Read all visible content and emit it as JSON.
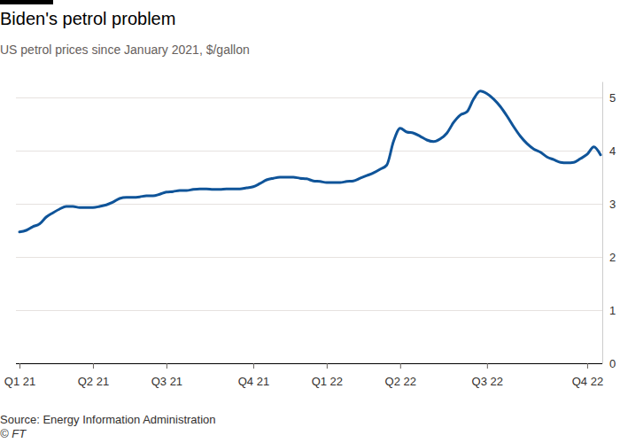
{
  "chart_data": {
    "type": "line",
    "title": "Biden's petrol problem",
    "subtitle": "US petrol prices since January 2021, $/gallon",
    "source": "Source: Energy Information Administration",
    "credit": "© FT",
    "categories": [
      "Q1 21",
      null,
      null,
      null,
      null,
      null,
      null,
      null,
      null,
      null,
      null,
      "Q2 21",
      null,
      null,
      null,
      null,
      null,
      null,
      null,
      null,
      null,
      null,
      "Q3 21",
      null,
      null,
      null,
      null,
      null,
      null,
      null,
      null,
      null,
      null,
      null,
      null,
      "Q4 21",
      null,
      null,
      null,
      null,
      null,
      null,
      null,
      null,
      null,
      null,
      "Q1 22",
      null,
      null,
      null,
      null,
      null,
      null,
      null,
      null,
      null,
      null,
      "Q2 22",
      null,
      null,
      null,
      null,
      null,
      null,
      null,
      null,
      null,
      null,
      null,
      null,
      "Q3 22",
      null,
      null,
      null,
      null,
      null,
      null,
      null,
      null,
      null,
      null,
      null,
      null,
      null,
      null,
      "Q4 22",
      null,
      null
    ],
    "values": [
      2.47,
      2.5,
      2.57,
      2.62,
      2.75,
      2.83,
      2.9,
      2.95,
      2.95,
      2.93,
      2.93,
      2.93,
      2.95,
      2.98,
      3.03,
      3.1,
      3.12,
      3.12,
      3.13,
      3.15,
      3.15,
      3.18,
      3.22,
      3.23,
      3.25,
      3.25,
      3.27,
      3.28,
      3.28,
      3.27,
      3.27,
      3.28,
      3.28,
      3.28,
      3.3,
      3.32,
      3.38,
      3.45,
      3.48,
      3.5,
      3.5,
      3.5,
      3.48,
      3.47,
      3.43,
      3.42,
      3.4,
      3.4,
      3.4,
      3.42,
      3.43,
      3.48,
      3.53,
      3.58,
      3.65,
      3.73,
      4.17,
      4.42,
      4.35,
      4.33,
      4.27,
      4.2,
      4.17,
      4.22,
      4.33,
      4.53,
      4.67,
      4.73,
      4.97,
      5.12,
      5.07,
      4.97,
      4.83,
      4.65,
      4.45,
      4.27,
      4.13,
      4.03,
      3.97,
      3.88,
      3.83,
      3.78,
      3.77,
      3.78,
      3.85,
      3.93,
      4.07,
      3.92
    ],
    "color": "#0f5499",
    "ylim": [
      0,
      5.3
    ],
    "yticks": [
      0,
      1,
      2,
      3,
      4,
      5
    ],
    "grid": true
  }
}
